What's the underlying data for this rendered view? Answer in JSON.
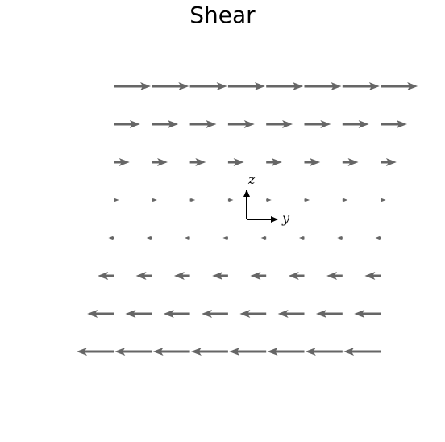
{
  "title": "Shear",
  "field": {
    "columns": 8,
    "row_velocities": [
      1.0,
      0.714,
      0.429,
      0.143,
      -0.143,
      -0.429,
      -0.714,
      -1.0
    ],
    "arrow_color": "#666666"
  },
  "axes_indicator": {
    "horizontal_label": "y",
    "vertical_label": "z",
    "color": "#000000"
  }
}
